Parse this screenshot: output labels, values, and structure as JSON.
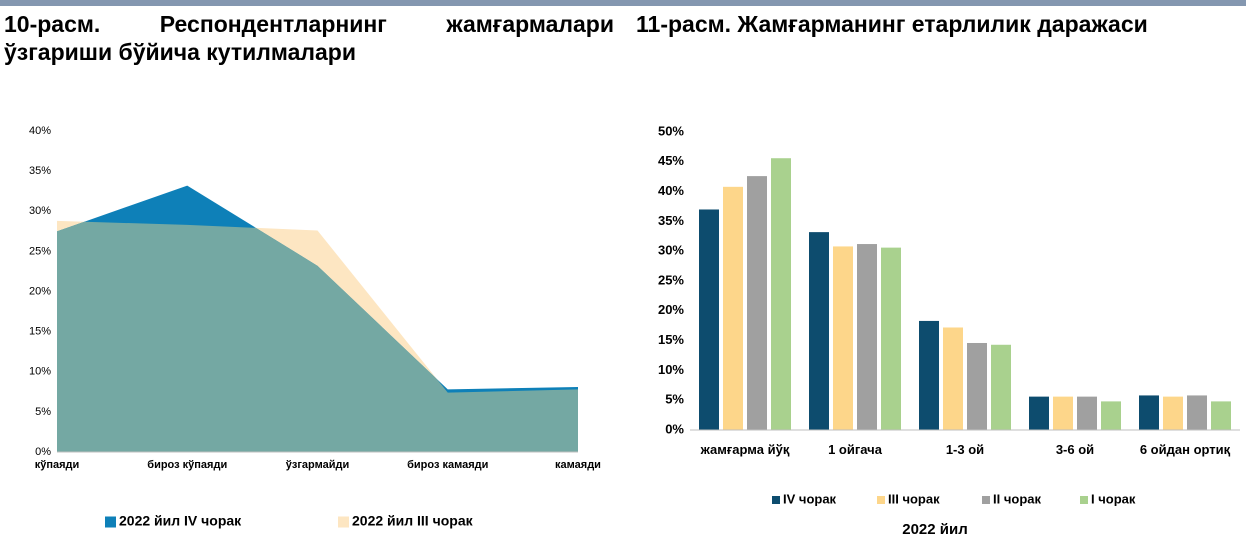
{
  "chart_data": [
    {
      "type": "area",
      "title": "10-расм. Респондентларнинг жамғармалари ўзгариши бўйича кутилмалари",
      "categories": [
        "кўпаяди",
        "бироз кўпаяди",
        "ўзгармайди",
        "бироз камаяди",
        "камаяди"
      ],
      "series": [
        {
          "name": "2022 йил IV чорак",
          "color": "#0e80b8",
          "values": [
            27.5,
            33.2,
            23.2,
            7.8,
            8.1
          ]
        },
        {
          "name": "2022 йил III чорак",
          "color": "#fde6c2",
          "values": [
            28.8,
            28.3,
            27.6,
            7.4,
            7.8
          ]
        }
      ],
      "ylim": [
        0,
        40
      ],
      "yticks": [
        {
          "value": 0,
          "label": "0%"
        },
        {
          "value": 5,
          "label": "5%"
        },
        {
          "value": 10,
          "label": "10%"
        },
        {
          "value": 15,
          "label": "15%"
        },
        {
          "value": 20,
          "label": "20%"
        },
        {
          "value": 25,
          "label": "25%"
        },
        {
          "value": 30,
          "label": "30%"
        },
        {
          "value": 35,
          "label": "35%"
        },
        {
          "value": 40,
          "label": "40%"
        }
      ],
      "grid": false,
      "legend": "bottom"
    },
    {
      "type": "bar",
      "title": "11-расм. Жамғарманинг етарлилик даражаси",
      "x_label": "2022 йил",
      "categories": [
        "жамғарма йўқ",
        "1 ойгача",
        "1-3 ой",
        "3-6 ой",
        "6 ойдан ортиқ"
      ],
      "series": [
        {
          "name": "IV чорак",
          "color": "#0d4c6e",
          "values": [
            37.0,
            33.2,
            18.3,
            5.6,
            5.8
          ]
        },
        {
          "name": "III чорак",
          "color": "#fdd68a",
          "values": [
            40.8,
            30.8,
            17.2,
            5.6,
            5.6
          ]
        },
        {
          "name": "II чорак",
          "color": "#a0a0a0",
          "values": [
            42.6,
            31.2,
            14.6,
            5.6,
            5.8
          ]
        },
        {
          "name": "I чорак",
          "color": "#a9d18e",
          "values": [
            45.6,
            30.6,
            14.3,
            4.8,
            4.8
          ]
        }
      ],
      "ylim": [
        0,
        50
      ],
      "yticks": [
        {
          "value": 0,
          "label": "0%"
        },
        {
          "value": 5,
          "label": "5%"
        },
        {
          "value": 10,
          "label": "10%"
        },
        {
          "value": 15,
          "label": "15%"
        },
        {
          "value": 20,
          "label": "20%"
        },
        {
          "value": 25,
          "label": "25%"
        },
        {
          "value": 30,
          "label": "30%"
        },
        {
          "value": 35,
          "label": "35%"
        },
        {
          "value": 40,
          "label": "40%"
        },
        {
          "value": 45,
          "label": "45%"
        },
        {
          "value": 50,
          "label": "50%"
        }
      ],
      "grid": false,
      "legend": "bottom"
    }
  ]
}
